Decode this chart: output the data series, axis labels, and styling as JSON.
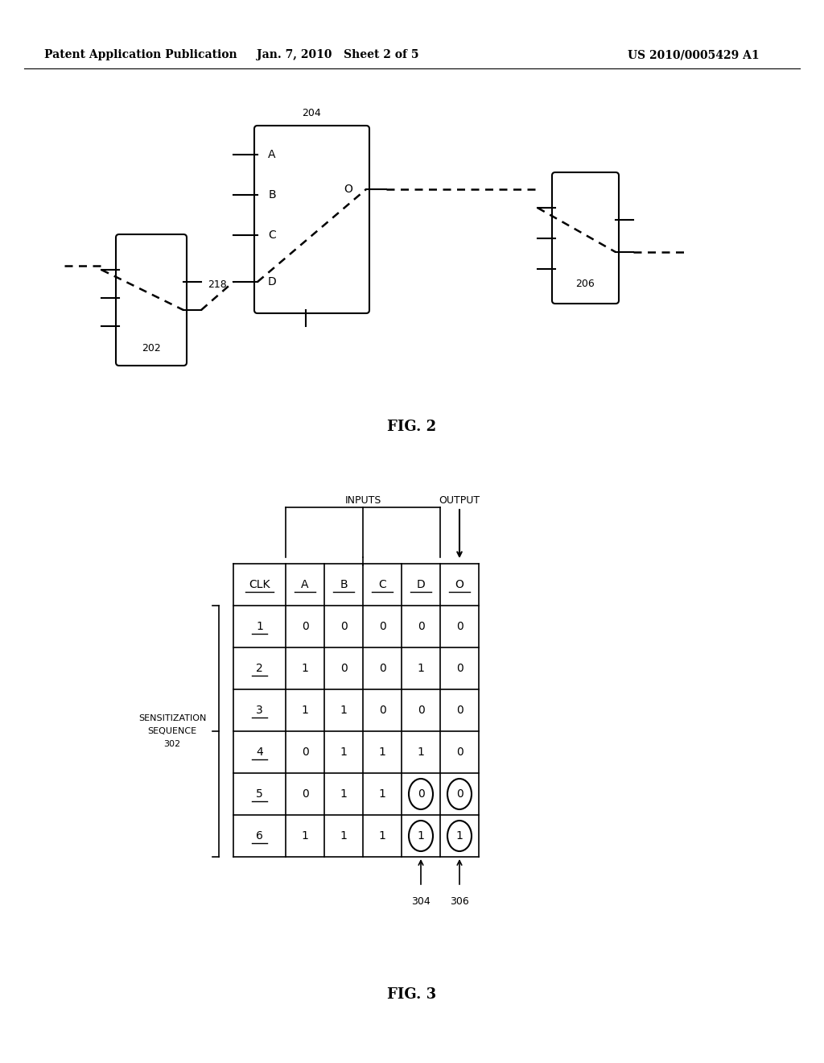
{
  "header_left": "Patent Application Publication",
  "header_mid": "Jan. 7, 2010   Sheet 2 of 5",
  "header_right": "US 2010/0005429 A1",
  "fig2_label": "FIG. 2",
  "fig3_label": "FIG. 3",
  "box202_label": "202",
  "box204_label": "204",
  "box206_label": "206",
  "wire_label_218": "218",
  "table_headers": [
    "CLK",
    "A",
    "B",
    "C",
    "D",
    "O"
  ],
  "table_data": [
    [
      "1",
      "0",
      "0",
      "0",
      "0",
      "0"
    ],
    [
      "2",
      "1",
      "0",
      "0",
      "1",
      "0"
    ],
    [
      "3",
      "1",
      "1",
      "0",
      "0",
      "0"
    ],
    [
      "4",
      "0",
      "1",
      "1",
      "1",
      "0"
    ],
    [
      "5",
      "0",
      "1",
      "1",
      "0",
      "0"
    ],
    [
      "6",
      "1",
      "1",
      "1",
      "1",
      "1"
    ]
  ],
  "label_inputs": "INPUTS",
  "label_output": "OUTPUT",
  "label_seq_line1": "SENSITIZATION",
  "label_seq_line2": "SEQUENCE",
  "label_seq_line3": "302",
  "label_304": "304",
  "label_306": "306",
  "bg_color": "#ffffff",
  "fg_color": "#000000"
}
